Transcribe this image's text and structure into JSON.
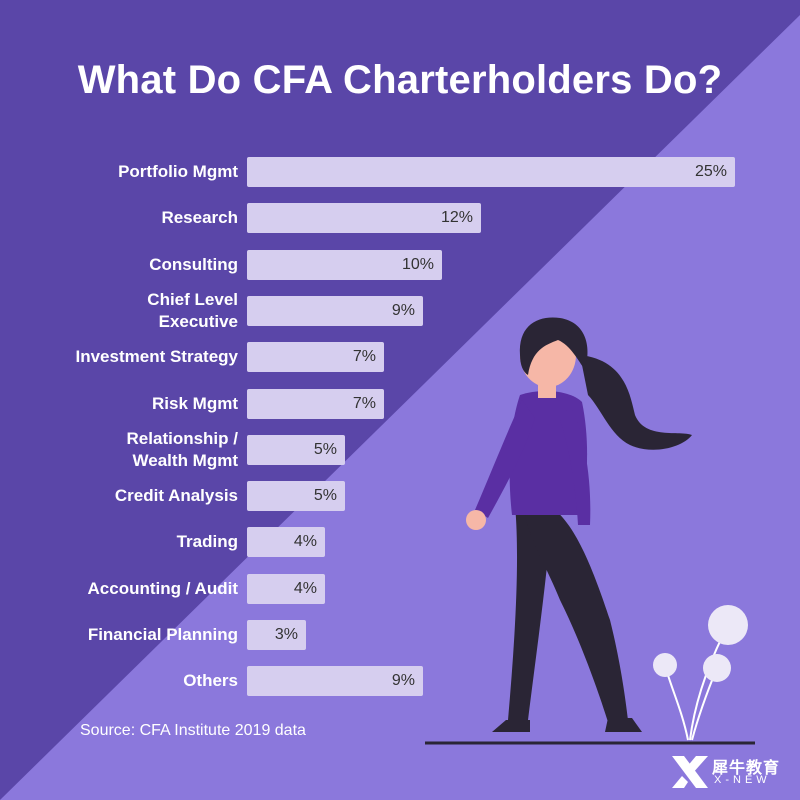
{
  "title": "What Do CFA Charterholders Do?",
  "source": "Source: CFA Institute 2019 data",
  "logo": {
    "cn": "犀牛教育",
    "en": "X-NEW"
  },
  "colors": {
    "background_dark": "#5a46a8",
    "background_light": "#8b78dc",
    "bar": "#d6ceef",
    "shirt": "#5a2fa3",
    "pants": "#2a2535",
    "skin": "#f6b7a7"
  },
  "chart_data": {
    "type": "bar",
    "orientation": "horizontal",
    "title": "What Do CFA Charterholders Do?",
    "categories": [
      "Portfolio Mgmt",
      "Research",
      "Consulting",
      "Chief Level\nExecutive",
      "Investment Strategy",
      "Risk Mgmt",
      "Relationship /\nWealth Mgmt",
      "Credit Analysis",
      "Trading",
      "Accounting / Audit",
      "Financial Planning",
      "Others"
    ],
    "values": [
      25,
      12,
      10,
      9,
      7,
      7,
      5,
      5,
      4,
      4,
      3,
      9
    ],
    "value_labels": [
      "25%",
      "12%",
      "10%",
      "9%",
      "7%",
      "7%",
      "5%",
      "5%",
      "4%",
      "4%",
      "3%",
      "9%"
    ],
    "xlim": [
      0,
      25
    ],
    "grid": false,
    "legend": "none"
  }
}
